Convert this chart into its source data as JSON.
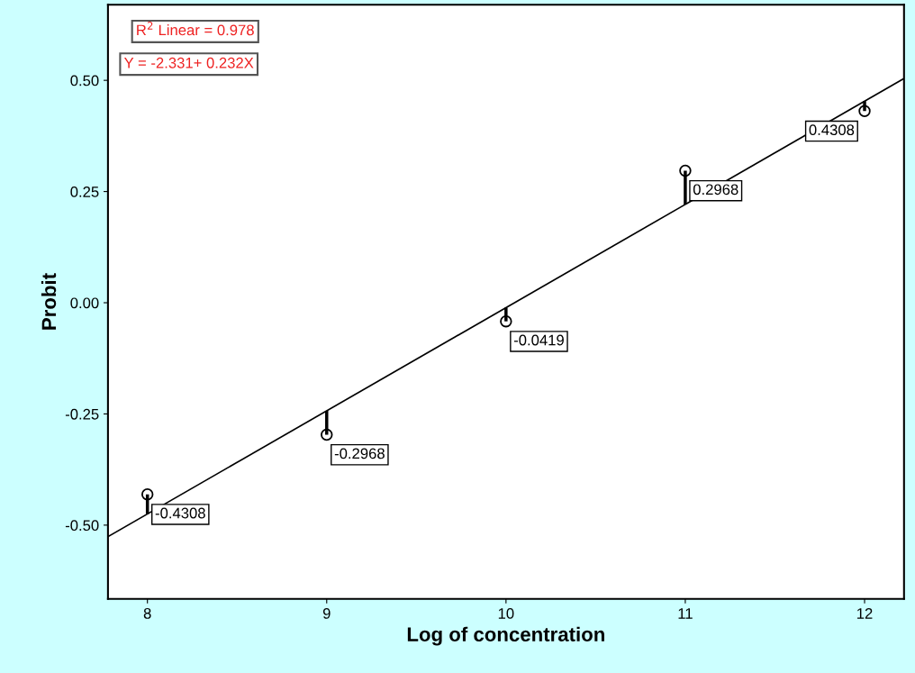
{
  "chart_data": {
    "type": "scatter",
    "xlabel": "Log of concentration",
    "ylabel": "Probit",
    "xlim": [
      7.78,
      12.22
    ],
    "ylim": [
      -0.666,
      0.67
    ],
    "xticks": [
      8,
      9,
      10,
      11,
      12
    ],
    "yticks": [
      {
        "value": -0.5,
        "label": "-0.50"
      },
      {
        "value": -0.25,
        "label": "-0.25"
      },
      {
        "value": 0,
        "label": "0.00"
      },
      {
        "value": 0.25,
        "label": "0.25"
      },
      {
        "value": 0.5,
        "label": "0.50"
      }
    ],
    "grid": false,
    "series": [
      {
        "color": "#000000",
        "marker": "circle",
        "x": [
          8,
          9,
          10,
          11,
          12
        ],
        "values": [
          -0.4308,
          -0.2968,
          -0.0419,
          0.2968,
          0.4308
        ],
        "value_labels": [
          "-0.4308",
          "-0.2968",
          "-0.0419",
          "0.2968",
          "0.4308"
        ],
        "errors": [
          [
            -0.475,
            -0.4308
          ],
          [
            -0.2968,
            -0.243
          ],
          [
            -0.0419,
            -0.011
          ],
          [
            0.221,
            0.2968
          ],
          [
            0.4308,
            0.453
          ]
        ]
      },
      {
        "type": "line",
        "color": "#000000",
        "line_style": "solid",
        "x": [
          7.78,
          12.22
        ],
        "values": [
          -0.526,
          0.504
        ]
      }
    ],
    "annotations": [
      "R$^{2}$ Linear = 0.978",
      "Y = -2.331+ 0.232X"
    ]
  }
}
